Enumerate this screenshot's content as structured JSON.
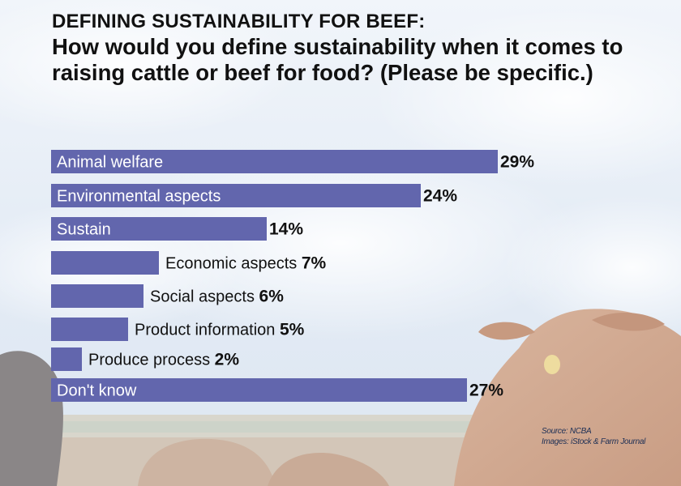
{
  "title": "DEFINING SUSTAINABILITY FOR BEEF:",
  "subtitle": "How would you define sustainability when it comes to raising cattle or beef for food? (Please be specific.)",
  "source": "Source: NCBA",
  "images_credit": "Images: iStock & Farm Journal",
  "colors": {
    "bar": "#6266ad",
    "bar_text": "#ffffff",
    "label_text": "#111111"
  },
  "chart_data": {
    "type": "bar",
    "orientation": "horizontal",
    "title": "DEFINING SUSTAINABILITY FOR BEEF:",
    "subtitle": "How would you define sustainability when it comes to raising cattle or beef for food? (Please be specific.)",
    "categories": [
      "Animal welfare",
      "Environmental aspects",
      "Sustain",
      "Economic aspects",
      "Social aspects",
      "Product information",
      "Produce process",
      "Don't know"
    ],
    "values": [
      29,
      24,
      14,
      7,
      6,
      5,
      2,
      27
    ],
    "value_labels": [
      "29%",
      "24%",
      "14%",
      "7%",
      "6%",
      "5%",
      "2%",
      "27%"
    ],
    "label_inside_bar": [
      true,
      true,
      true,
      false,
      false,
      false,
      false,
      true
    ],
    "unit": "%",
    "xlim": [
      0,
      29
    ],
    "grid": false,
    "legend": "none"
  }
}
